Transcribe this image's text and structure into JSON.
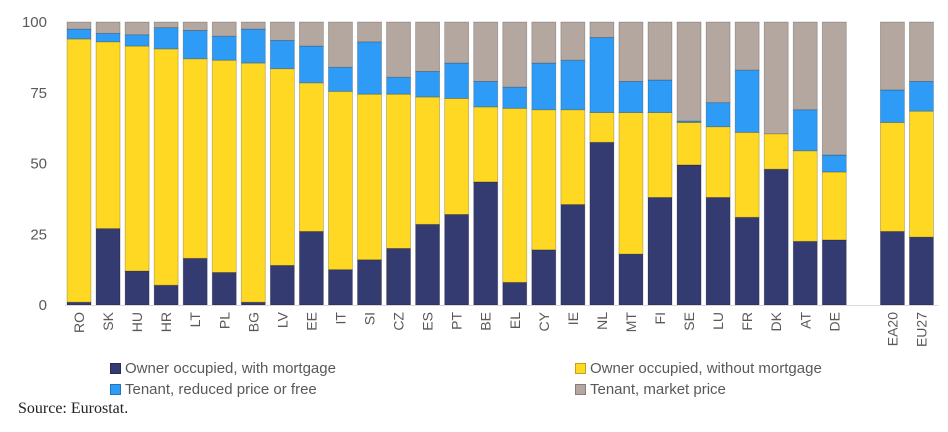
{
  "chart_data": {
    "type": "bar",
    "stacked": true,
    "title": "",
    "xlabel": "",
    "ylabel": "",
    "ylim": [
      0,
      100
    ],
    "yticks": [
      0,
      25,
      50,
      75,
      100
    ],
    "grid": false,
    "legend_position": "bottom",
    "categories": [
      "RO",
      "SK",
      "HU",
      "HR",
      "LT",
      "PL",
      "BG",
      "LV",
      "EE",
      "IT",
      "SI",
      "CZ",
      "ES",
      "PT",
      "BE",
      "EL",
      "CY",
      "IE",
      "NL",
      "MT",
      "FI",
      "SE",
      "LU",
      "FR",
      "DK",
      "AT",
      "DE",
      "",
      "EA20",
      "EU27"
    ],
    "series": [
      {
        "name": "Owner occupied, with mortgage",
        "color": "#343B71",
        "values": [
          1,
          27,
          12,
          7,
          16.5,
          11.5,
          1,
          14,
          26,
          12.5,
          16,
          20,
          28.5,
          32,
          43.5,
          8,
          19.5,
          35.5,
          57.5,
          18,
          38,
          49.5,
          38,
          31,
          48,
          22.5,
          23,
          null,
          26,
          24
        ]
      },
      {
        "name": "Owner occupied, without mortgage",
        "color": "#FED823",
        "values": [
          93,
          66,
          79.5,
          83.5,
          70.5,
          75,
          84.5,
          69.5,
          52.5,
          63,
          58.5,
          54.5,
          45,
          41,
          26.5,
          61.5,
          49.5,
          33.5,
          10.5,
          50,
          30,
          15,
          25,
          30,
          12.5,
          32,
          24,
          null,
          38.5,
          44.5
        ]
      },
      {
        "name": "Tenant, reduced price or free",
        "color": "#2E9CF7",
        "values": [
          3.5,
          3,
          4,
          7.5,
          10,
          8.5,
          12,
          10,
          13,
          8.5,
          18.5,
          6,
          9,
          12.5,
          9,
          7.5,
          16.5,
          17.5,
          26.5,
          11,
          11.5,
          0.5,
          8.5,
          22,
          0,
          14.5,
          6,
          null,
          11.5,
          10.5
        ]
      },
      {
        "name": "Tenant, market price",
        "color": "#B4A7A0",
        "values": [
          2.5,
          4,
          4.5,
          2,
          3,
          5,
          2.5,
          6.5,
          8.5,
          16,
          7,
          19.5,
          17.5,
          14.5,
          21,
          23,
          14.5,
          13.5,
          5.5,
          21,
          20.5,
          35,
          28.5,
          17,
          39.5,
          31,
          47,
          null,
          24,
          21
        ]
      }
    ]
  },
  "legend": {
    "items": [
      {
        "label": "Owner occupied, with mortgage",
        "color": "#343B71"
      },
      {
        "label": "Owner occupied, without mortgage",
        "color": "#FED823"
      },
      {
        "label": "Tenant, reduced price or free",
        "color": "#2E9CF7"
      },
      {
        "label": "Tenant, market price",
        "color": "#B4A7A0"
      }
    ]
  },
  "source": "Source: Eurostat."
}
